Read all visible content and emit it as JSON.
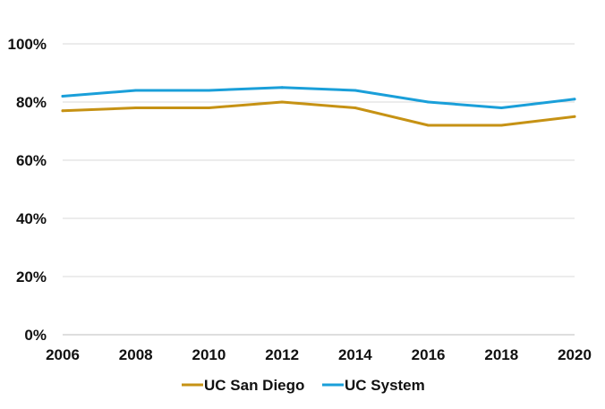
{
  "chart_data": {
    "type": "line",
    "title": "",
    "xlabel": "",
    "ylabel": "",
    "x": [
      2006,
      2008,
      2010,
      2012,
      2014,
      2016,
      2018,
      2020
    ],
    "x_tick_labels": [
      "2006",
      "2008",
      "2010",
      "2012",
      "2014",
      "2016",
      "2018",
      "2020"
    ],
    "ylim": [
      0,
      100
    ],
    "y_ticks": [
      0,
      20,
      40,
      60,
      80,
      100
    ],
    "y_tick_labels": [
      "0%",
      "20%",
      "40%",
      "60%",
      "80%",
      "100%"
    ],
    "grid": "horizontal",
    "legend_position": "bottom",
    "series": [
      {
        "name": "UC San Diego",
        "color": "#C69214",
        "values": [
          77,
          78,
          78,
          80,
          78,
          72,
          72,
          75
        ]
      },
      {
        "name": "UC System",
        "color": "#1A9FD9",
        "values": [
          82,
          84,
          84,
          85,
          84,
          80,
          78,
          81
        ]
      }
    ]
  }
}
